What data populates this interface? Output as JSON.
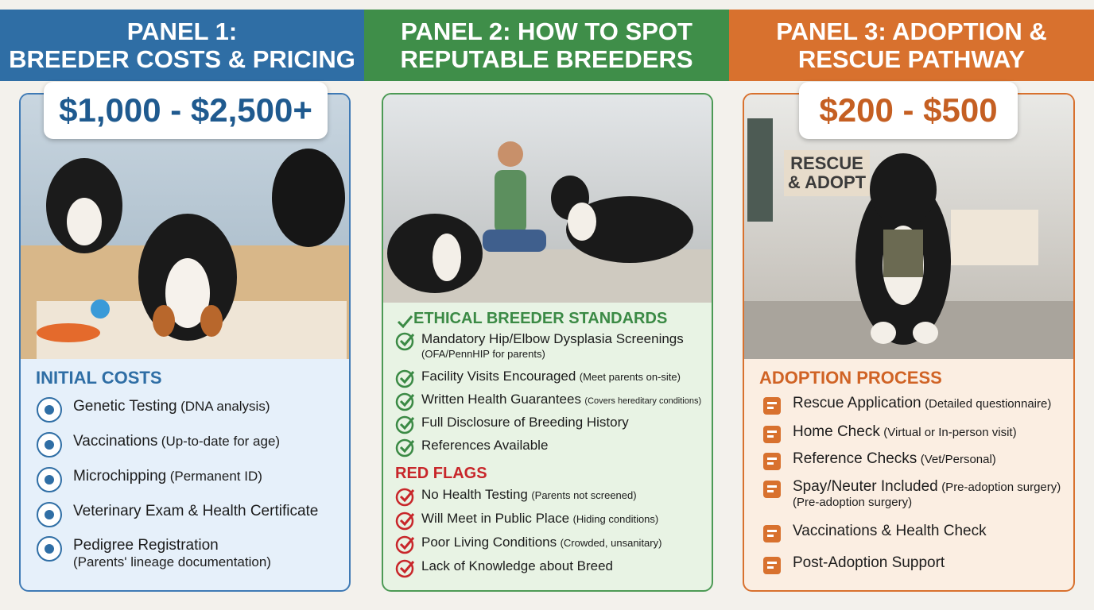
{
  "panels": [
    {
      "title": [
        "PANEL 1:",
        "BREEDER COSTS & PRICING"
      ],
      "price": "$1,000 - $2,500+",
      "section": "INITIAL COSTS",
      "items": [
        {
          "label": "Genetic Testing",
          "note": "(DNA analysis)"
        },
        {
          "label": "Vaccinations",
          "note": "(Up-to-date for age)"
        },
        {
          "label": "Microchipping",
          "note": "(Permanent ID)"
        },
        {
          "label": "Veterinary Exam & Health Certificate"
        },
        {
          "label": "Pedigree Registration",
          "note": "(Parents' lineage documentation)"
        }
      ]
    },
    {
      "title": [
        "PANEL 2: HOW TO SPOT",
        "REPUTABLE BREEDERS"
      ],
      "sections": [
        {
          "heading": "ETHICAL BREEDER STANDARDS",
          "items": [
            {
              "label": "Mandatory Hip/Elbow Dysplasia Screenings",
              "note": "(OFA/PennHIP for parents)"
            },
            {
              "label": "Facility Visits Encouraged",
              "note": "(Meet parents on-site)"
            },
            {
              "label": "Written Health Guarantees",
              "note": "(Covers hereditary conditions)"
            },
            {
              "label": "Full Disclosure of Breeding History"
            },
            {
              "label": "References Available"
            }
          ]
        },
        {
          "heading": "RED FLAGS",
          "items": [
            {
              "label": "No Health Testing",
              "note": "(Parents not screened)"
            },
            {
              "label": "Will Meet in Public Place",
              "note": "(Hiding conditions)"
            },
            {
              "label": "Poor Living Conditions",
              "note": "(Crowded, unsanitary)"
            },
            {
              "label": "Lack of Knowledge about Breed"
            }
          ]
        }
      ]
    },
    {
      "title": [
        "PANEL 3: ADOPTION &",
        "RESCUE PATHWAY"
      ],
      "price": "$200 - $500",
      "photo_sign": [
        "RESCUE",
        "& ADOPT"
      ],
      "section": "ADOPTION PROCESS",
      "items": [
        {
          "label": "Rescue Application",
          "note": "(Detailed questionnaire)"
        },
        {
          "label": "Home Check",
          "note": "(Virtual or In-person visit)"
        },
        {
          "label": "Reference Checks",
          "note": "(Vet/Personal)"
        },
        {
          "label": "Spay/Neuter Included",
          "note": "(Pre-adoption surgery)",
          "note2": "(Pre-adoption surgery)"
        },
        {
          "label": "Vaccinations & Health Check"
        },
        {
          "label": "Post-Adoption Support"
        }
      ]
    }
  ]
}
